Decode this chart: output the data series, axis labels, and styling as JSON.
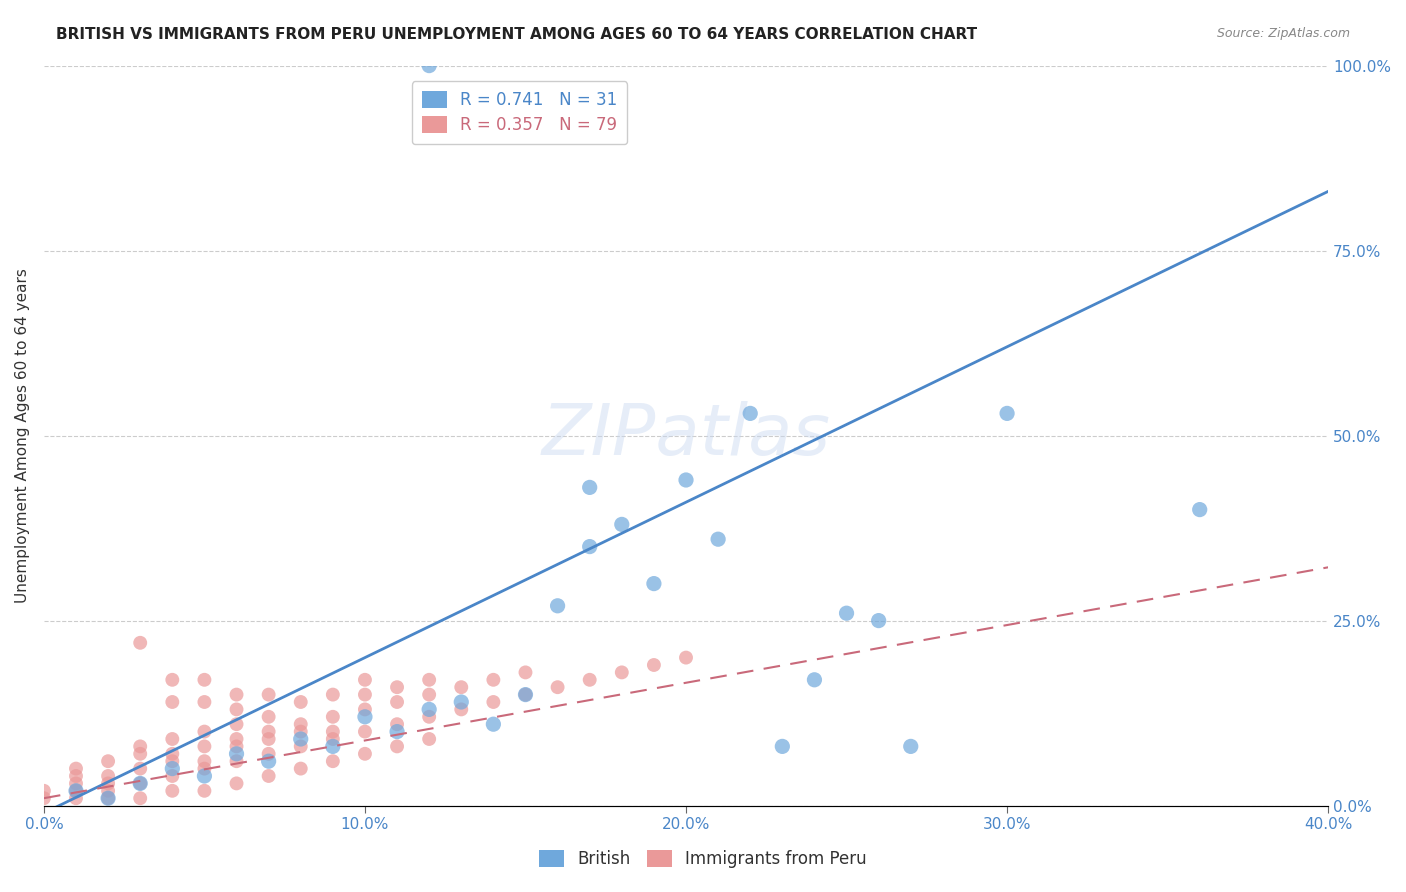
{
  "title": "BRITISH VS IMMIGRANTS FROM PERU UNEMPLOYMENT AMONG AGES 60 TO 64 YEARS CORRELATION CHART",
  "source": "Source: ZipAtlas.com",
  "ylabel": "Unemployment Among Ages 60 to 64 years",
  "x_tick_labels": [
    "0.0%",
    "10.0%",
    "20.0%",
    "30.0%",
    "40.0%"
  ],
  "x_tick_values": [
    0.0,
    0.1,
    0.2,
    0.3,
    0.4
  ],
  "y_tick_labels": [
    "0.0%",
    "25.0%",
    "50.0%",
    "75.0%",
    "100.0%"
  ],
  "y_tick_values": [
    0.0,
    0.25,
    0.5,
    0.75,
    1.0
  ],
  "xlim": [
    0.0,
    0.4
  ],
  "ylim": [
    0.0,
    1.0
  ],
  "british_color": "#6fa8dc",
  "peru_color": "#ea9999",
  "british_R": 0.741,
  "british_N": 31,
  "peru_R": 0.357,
  "peru_N": 79,
  "trendline_british_color": "#4a86c8",
  "trendline_peru_color": "#c9697a",
  "british_slope": 2.1,
  "british_intercept": -0.01,
  "peru_slope": 0.78,
  "peru_intercept": 0.01,
  "british_scatter": [
    [
      0.01,
      0.02
    ],
    [
      0.02,
      0.01
    ],
    [
      0.03,
      0.03
    ],
    [
      0.04,
      0.05
    ],
    [
      0.05,
      0.04
    ],
    [
      0.06,
      0.07
    ],
    [
      0.07,
      0.06
    ],
    [
      0.08,
      0.09
    ],
    [
      0.09,
      0.08
    ],
    [
      0.1,
      0.12
    ],
    [
      0.11,
      0.1
    ],
    [
      0.12,
      0.13
    ],
    [
      0.13,
      0.14
    ],
    [
      0.14,
      0.11
    ],
    [
      0.15,
      0.15
    ],
    [
      0.16,
      0.27
    ],
    [
      0.17,
      0.35
    ],
    [
      0.17,
      0.43
    ],
    [
      0.18,
      0.38
    ],
    [
      0.19,
      0.3
    ],
    [
      0.2,
      0.44
    ],
    [
      0.21,
      0.36
    ],
    [
      0.22,
      0.53
    ],
    [
      0.23,
      0.08
    ],
    [
      0.24,
      0.17
    ],
    [
      0.25,
      0.26
    ],
    [
      0.26,
      0.25
    ],
    [
      0.27,
      0.08
    ],
    [
      0.3,
      0.53
    ],
    [
      0.36,
      0.4
    ],
    [
      0.12,
      1.0
    ]
  ],
  "peru_scatter": [
    [
      0.0,
      0.02
    ],
    [
      0.0,
      0.01
    ],
    [
      0.01,
      0.03
    ],
    [
      0.01,
      0.02
    ],
    [
      0.01,
      0.04
    ],
    [
      0.01,
      0.05
    ],
    [
      0.02,
      0.02
    ],
    [
      0.02,
      0.03
    ],
    [
      0.02,
      0.06
    ],
    [
      0.02,
      0.04
    ],
    [
      0.03,
      0.03
    ],
    [
      0.03,
      0.05
    ],
    [
      0.03,
      0.07
    ],
    [
      0.03,
      0.08
    ],
    [
      0.03,
      0.22
    ],
    [
      0.04,
      0.04
    ],
    [
      0.04,
      0.06
    ],
    [
      0.04,
      0.07
    ],
    [
      0.04,
      0.09
    ],
    [
      0.04,
      0.14
    ],
    [
      0.04,
      0.17
    ],
    [
      0.05,
      0.05
    ],
    [
      0.05,
      0.06
    ],
    [
      0.05,
      0.08
    ],
    [
      0.05,
      0.1
    ],
    [
      0.05,
      0.14
    ],
    [
      0.05,
      0.17
    ],
    [
      0.06,
      0.06
    ],
    [
      0.06,
      0.08
    ],
    [
      0.06,
      0.09
    ],
    [
      0.06,
      0.11
    ],
    [
      0.06,
      0.13
    ],
    [
      0.06,
      0.15
    ],
    [
      0.07,
      0.07
    ],
    [
      0.07,
      0.09
    ],
    [
      0.07,
      0.1
    ],
    [
      0.07,
      0.12
    ],
    [
      0.07,
      0.15
    ],
    [
      0.08,
      0.08
    ],
    [
      0.08,
      0.1
    ],
    [
      0.08,
      0.11
    ],
    [
      0.08,
      0.14
    ],
    [
      0.09,
      0.09
    ],
    [
      0.09,
      0.1
    ],
    [
      0.09,
      0.12
    ],
    [
      0.09,
      0.15
    ],
    [
      0.1,
      0.1
    ],
    [
      0.1,
      0.13
    ],
    [
      0.1,
      0.15
    ],
    [
      0.1,
      0.17
    ],
    [
      0.11,
      0.11
    ],
    [
      0.11,
      0.14
    ],
    [
      0.11,
      0.16
    ],
    [
      0.12,
      0.12
    ],
    [
      0.12,
      0.15
    ],
    [
      0.12,
      0.17
    ],
    [
      0.13,
      0.13
    ],
    [
      0.13,
      0.16
    ],
    [
      0.14,
      0.14
    ],
    [
      0.14,
      0.17
    ],
    [
      0.15,
      0.15
    ],
    [
      0.15,
      0.18
    ],
    [
      0.16,
      0.16
    ],
    [
      0.17,
      0.17
    ],
    [
      0.18,
      0.18
    ],
    [
      0.19,
      0.19
    ],
    [
      0.2,
      0.2
    ],
    [
      0.01,
      0.01
    ],
    [
      0.02,
      0.01
    ],
    [
      0.03,
      0.01
    ],
    [
      0.04,
      0.02
    ],
    [
      0.05,
      0.02
    ],
    [
      0.06,
      0.03
    ],
    [
      0.07,
      0.04
    ],
    [
      0.08,
      0.05
    ],
    [
      0.09,
      0.06
    ],
    [
      0.1,
      0.07
    ],
    [
      0.11,
      0.08
    ],
    [
      0.12,
      0.09
    ]
  ]
}
